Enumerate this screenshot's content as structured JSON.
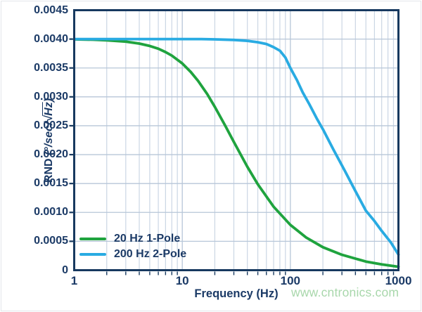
{
  "figure": {
    "watermark": "www.cntronics.com",
    "colors": {
      "text": "#1b3a66",
      "frame": "#17395f",
      "grid_major": "#b7c6d8",
      "grid_minor": "#cbd6e4",
      "series_green": "#1fa33e",
      "series_cyan": "#29abe2",
      "watermark": "#a8d7ab"
    }
  },
  "chart_data": {
    "type": "line",
    "title": "",
    "xlabel": "Frequency (Hz)",
    "ylabel": "RND (°/sec/√Hz)",
    "ylabel_parts": {
      "quantity": "RND ",
      "unit_prefix": "(°/sec/√",
      "unit_overline": "Hz",
      "unit_suffix": ")"
    },
    "x_scale": "log",
    "y_scale": "linear",
    "xlim": [
      1,
      1000
    ],
    "ylim": [
      0,
      0.0045
    ],
    "xticks": [
      "1",
      "10",
      "100",
      "1000"
    ],
    "yticks": [
      "0",
      "0.0005",
      "0.0010",
      "0.0015",
      "0.0020",
      "0.0025",
      "0.0030",
      "0.0035",
      "0.0040",
      "0.0045"
    ],
    "grid": true,
    "legend_position": "inside bottom-left",
    "series": [
      {
        "name": "20 Hz 1-Pole",
        "color": "#1fa33e",
        "x": [
          1,
          1.5,
          2,
          3,
          4,
          5,
          6,
          7,
          8,
          10,
          12,
          14,
          17,
          20,
          25,
          30,
          40,
          50,
          70,
          100,
          140,
          200,
          300,
          500,
          700,
          1000
        ],
        "y": [
          0.003995,
          0.003989,
          0.00398,
          0.003956,
          0.003922,
          0.003881,
          0.003834,
          0.003775,
          0.003714,
          0.003578,
          0.00343,
          0.003277,
          0.003049,
          0.002828,
          0.002499,
          0.002219,
          0.001789,
          0.001486,
          0.001099,
          0.000784,
          0.000566,
          0.000398,
          0.000266,
          0.00015,
          0.0001,
          6e-05
        ]
      },
      {
        "name": "200 Hz 2-Pole",
        "color": "#29abe2",
        "x": [
          1,
          2,
          5,
          10,
          15,
          20,
          30,
          40,
          50,
          60,
          70,
          80,
          90,
          100,
          115,
          130,
          150,
          175,
          200,
          250,
          320,
          400,
          500,
          600,
          700,
          850,
          1000
        ],
        "y": [
          0.004,
          0.004,
          0.004,
          0.004,
          0.004,
          0.003995,
          0.003985,
          0.00397,
          0.003945,
          0.003915,
          0.00386,
          0.0038,
          0.00368,
          0.0035,
          0.00329,
          0.00308,
          0.00287,
          0.00263,
          0.00244,
          0.00209,
          0.001715,
          0.00137,
          0.00103,
          0.00085,
          0.00068,
          0.00048,
          0.00027
        ]
      }
    ]
  }
}
